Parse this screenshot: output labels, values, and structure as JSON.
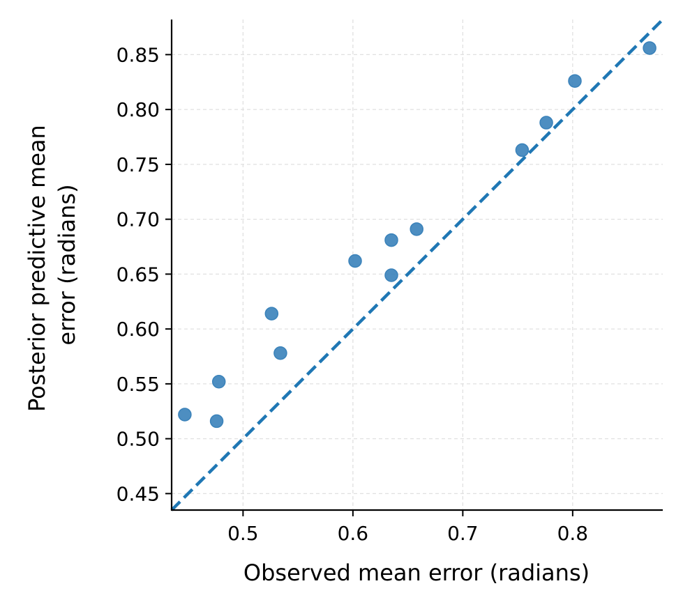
{
  "chart_data": {
    "type": "scatter",
    "title": "",
    "xlabel": "Observed mean error (radians)",
    "ylabel_lines": [
      "Posterior predictive mean",
      "error (radians)"
    ],
    "xlim": [
      0.435,
      0.882
    ],
    "ylim": [
      0.435,
      0.882
    ],
    "x_ticks": [
      0.5,
      0.6,
      0.7,
      0.8
    ],
    "x_tick_labels": [
      "0.5",
      "0.6",
      "0.7",
      "0.8"
    ],
    "y_ticks": [
      0.45,
      0.5,
      0.55,
      0.6,
      0.65,
      0.7,
      0.75,
      0.8,
      0.85
    ],
    "y_tick_labels": [
      "0.45",
      "0.50",
      "0.55",
      "0.60",
      "0.65",
      "0.70",
      "0.75",
      "0.80",
      "0.85"
    ],
    "grid": true,
    "reference_line": "y=x",
    "points": [
      {
        "x": 0.447,
        "y": 0.522
      },
      {
        "x": 0.476,
        "y": 0.516
      },
      {
        "x": 0.478,
        "y": 0.552
      },
      {
        "x": 0.526,
        "y": 0.614
      },
      {
        "x": 0.534,
        "y": 0.578
      },
      {
        "x": 0.602,
        "y": 0.662
      },
      {
        "x": 0.635,
        "y": 0.649
      },
      {
        "x": 0.635,
        "y": 0.681
      },
      {
        "x": 0.658,
        "y": 0.691
      },
      {
        "x": 0.754,
        "y": 0.763
      },
      {
        "x": 0.776,
        "y": 0.788
      },
      {
        "x": 0.802,
        "y": 0.826
      },
      {
        "x": 0.87,
        "y": 0.856
      }
    ],
    "colors": {
      "points": "#3a82ba",
      "line": "#1f77b4",
      "grid": "#e0e0e0"
    }
  }
}
